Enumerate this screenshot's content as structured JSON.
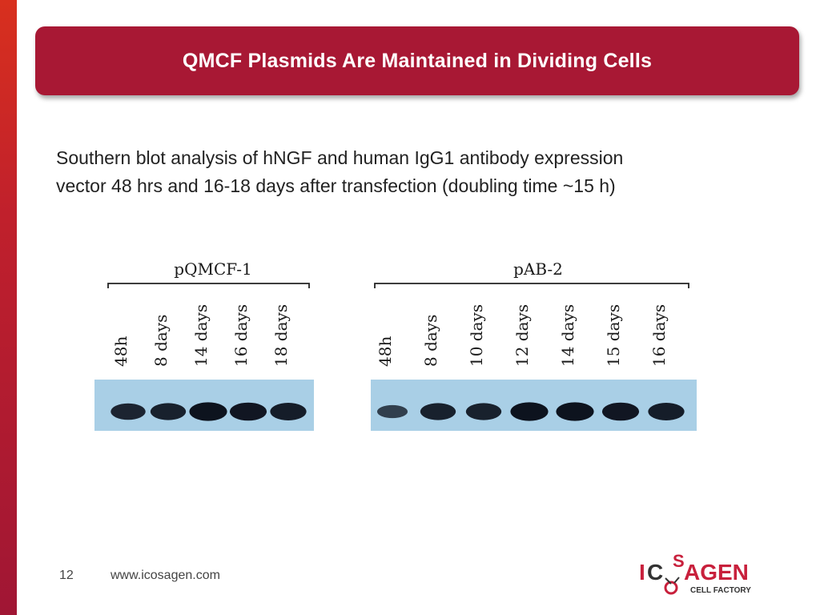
{
  "slide": {
    "title": "QMCF Plasmids Are Maintained in Dividing Cells",
    "body_line1": "Southern blot analysis of hNGF and human IgG1 antibody expression",
    "body_line2": "vector 48 hrs and 16-18 days after transfection (doubling time ~15 h)",
    "page_number": "12",
    "url": "www.icosagen.com"
  },
  "figure": {
    "panels": [
      {
        "name": "pQMCF-1",
        "lanes": [
          "48h",
          "8 days",
          "14 days",
          "16 days",
          "18 days"
        ],
        "band_intensity": [
          0.75,
          0.8,
          0.95,
          0.9,
          0.85
        ]
      },
      {
        "name": "pAB-2",
        "lanes": [
          "48h",
          "8 days",
          "10 days",
          "12 days",
          "14 days",
          "15 days",
          "16 days"
        ],
        "band_intensity": [
          0.45,
          0.8,
          0.8,
          0.95,
          0.95,
          0.9,
          0.85
        ]
      }
    ],
    "blot_background": "#a9cfe6",
    "band_color": "#0a0f1a"
  },
  "logo": {
    "wordmark": "ICOSAGEN",
    "tagline": "CELL FACTORY",
    "primary_color": "#c8203c",
    "secondary_color": "#333333"
  },
  "colors": {
    "accent": "#a81834",
    "left_bar_top": "#d8301e",
    "left_bar_bottom": "#a01634"
  }
}
